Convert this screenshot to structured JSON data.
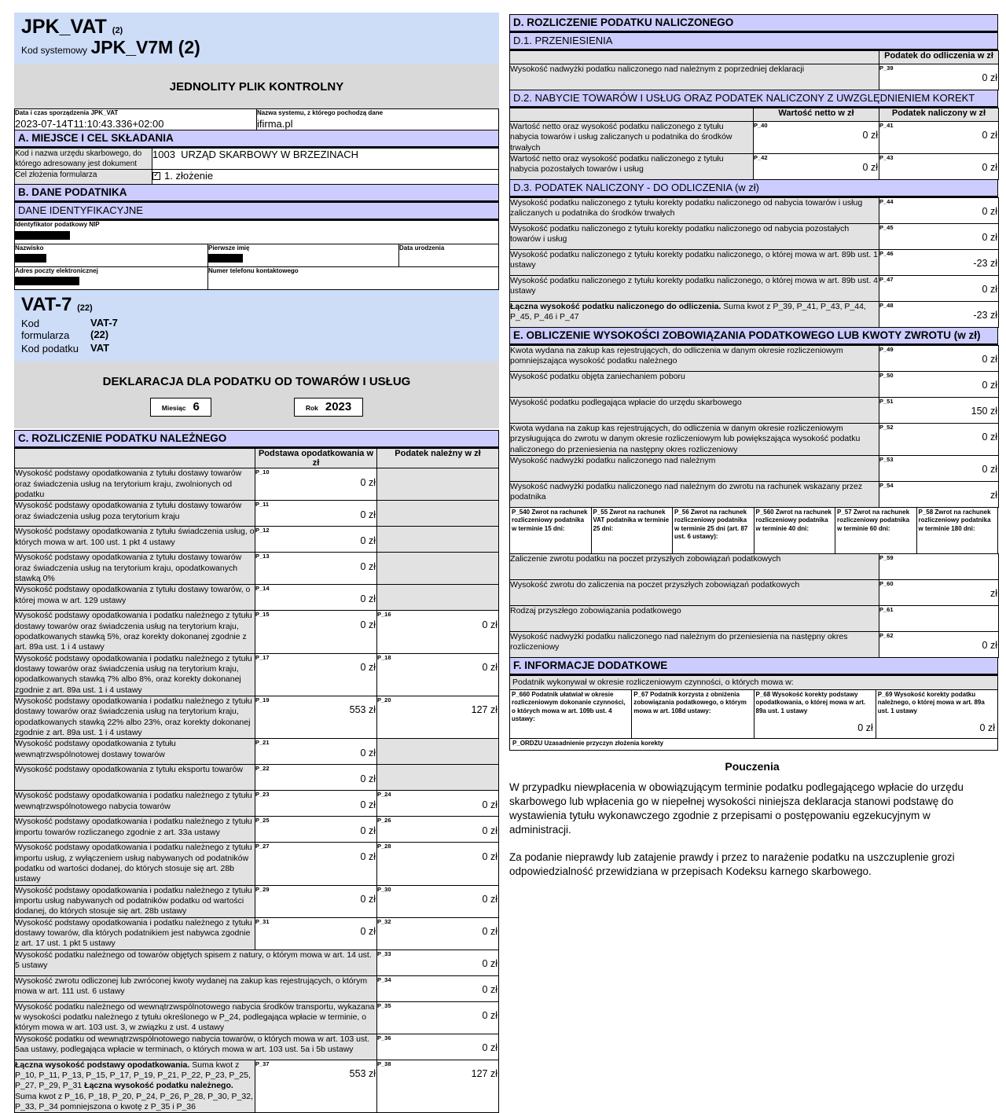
{
  "header": {
    "title": "JPK_VAT",
    "title_version": "(2)",
    "kod_systemowy_label": "Kod systemowy",
    "kod_systemowy_value": "JPK_V7M (2)",
    "banner": "JEDNOLITY PLIK KONTROLNY",
    "date_label": "Data i czas sporządzenia JPK_VAT",
    "date_value": "2023-07-14T11:10:43.336+02:00",
    "system_label": "Nazwa systemu, z którego pochodzą dane",
    "system_value": "ifirma.pl"
  },
  "section_a": {
    "title": "A. MIEJSCE I CEL SKŁADANIA",
    "office_label": "Kod i nazwa urzędu skarbowego, do którego adresowany jest dokument",
    "office_value": "1003  URZĄD SKARBOWY W BRZEZINACH",
    "purpose_label": "Cel złożenia formularza",
    "purpose_value": "1. złożenie"
  },
  "section_b": {
    "title": "B. DANE PODATNIKA",
    "subtitle": "DANE IDENTYFIKACYJNE",
    "nip_label": "Identyfikator podatkowy NIP",
    "surname_label": "Nazwisko",
    "firstname_label": "Pierwsze imię",
    "birthdate_label": "Data urodzenia",
    "email_label": "Adres poczty elektronicznej",
    "phone_label": "Numer telefonu kontaktowego"
  },
  "vat7": {
    "title": "VAT-7",
    "title_version": "(22)",
    "kod_formularza_label": "Kod formularza",
    "kod_formularza_line1": "VAT-7",
    "kod_formularza_line2": "(22)",
    "kod_podatku_label": "Kod podatku",
    "kod_podatku_value": "VAT",
    "banner": "DEKLARACJA DLA PODATKU OD TOWARÓW I USŁUG",
    "month_label": "Miesiąc",
    "month_value": "6",
    "year_label": "Rok",
    "year_value": "2023"
  },
  "section_c": {
    "title": "C. ROZLICZENIE PODATKU NALEŻNEGO",
    "col_headers": [
      "Podstawa opodatkowania w zł",
      "Podatek należny w zł"
    ],
    "rows": [
      {
        "label": "Wysokość podstawy opodatkowania z tytułu dostawy towarów oraz świadczenia usług na terytorium kraju, zwolnionych od podatku",
        "cells": [
          {
            "code": "P_10",
            "value": "0 zł"
          },
          {
            "disabled": true
          }
        ]
      },
      {
        "label": "Wysokość podstawy opodatkowania z tytułu dostawy towarów oraz świadczenia usług poza terytorium kraju",
        "cells": [
          {
            "code": "P_11",
            "value": "0 zł"
          },
          {
            "disabled": true
          }
        ]
      },
      {
        "label": "Wysokość podstawy opodatkowania z tytułu świadczenia usług, o których mowa w art. 100 ust. 1 pkt 4 ustawy",
        "cells": [
          {
            "code": "P_12",
            "value": "0 zł"
          },
          {
            "disabled": true
          }
        ]
      },
      {
        "label": "Wysokość podstawy opodatkowania z tytułu dostawy towarów oraz świadczenia usług na terytorium kraju, opodatkowanych stawką 0%",
        "cells": [
          {
            "code": "P_13",
            "value": "0 zł"
          },
          {
            "disabled": true
          }
        ]
      },
      {
        "label": "Wysokość podstawy opodatkowania z tytułu dostawy towarów, o której mowa w art. 129 ustawy",
        "cells": [
          {
            "code": "P_14",
            "value": "0 zł"
          },
          {
            "disabled": true
          }
        ]
      },
      {
        "label": "Wysokość podstawy opodatkowania i podatku należnego z tytułu dostawy towarów oraz świadczenia usług na terytorium kraju, opodatkowanych stawką 5%, oraz korekty dokonanej zgodnie z art. 89a ust. 1 i 4 ustawy",
        "cells": [
          {
            "code": "P_15",
            "value": "0 zł"
          },
          {
            "code": "P_16",
            "value": "0 zł"
          }
        ]
      },
      {
        "label": "Wysokość podstawy opodatkowania i podatku należnego z tytułu dostawy towarów oraz świadczenia usług na terytorium kraju, opodatkowanych stawką 7% albo 8%, oraz korekty dokonanej zgodnie z art. 89a ust. 1 i 4 ustawy",
        "cells": [
          {
            "code": "P_17",
            "value": "0 zł"
          },
          {
            "code": "P_18",
            "value": "0 zł"
          }
        ]
      },
      {
        "label": "Wysokość podstawy opodatkowania i podatku należnego z tytułu dostawy towarów oraz świadczenia usług na terytorium kraju, opodatkowanych stawką 22% albo 23%, oraz korekty dokonanej zgodnie z art. 89a ust. 1 i 4 ustawy",
        "cells": [
          {
            "code": "P_19",
            "value": "553 zł"
          },
          {
            "code": "P_20",
            "value": "127 zł"
          }
        ]
      },
      {
        "label": "Wysokość podstawy opodatkowania z tytułu wewnątrzwspólnotowej dostawy towarów",
        "cells": [
          {
            "code": "P_21",
            "value": "0 zł"
          },
          {
            "disabled": true
          }
        ]
      },
      {
        "label": "Wysokość podstawy opodatkowania z tytułu eksportu towarów",
        "cells": [
          {
            "code": "P_22",
            "value": "0 zł"
          },
          {
            "disabled": true
          }
        ]
      },
      {
        "label": "Wysokość podstawy opodatkowania i podatku należnego z tytułu wewnątrzwspólnotowego nabycia towarów",
        "cells": [
          {
            "code": "P_23",
            "value": "0 zł"
          },
          {
            "code": "P_24",
            "value": "0 zł"
          }
        ]
      },
      {
        "label": "Wysokość podstawy opodatkowania i podatku należnego z tytułu importu towarów rozliczanego zgodnie z art. 33a ustawy",
        "cells": [
          {
            "code": "P_25",
            "value": "0 zł"
          },
          {
            "code": "P_26",
            "value": "0 zł"
          }
        ]
      },
      {
        "label": "Wysokość podstawy opodatkowania i podatku należnego z tytułu importu usług, z wyłączeniem usług nabywanych od podatników podatku od wartości dodanej, do których stosuje się art. 28b ustawy",
        "cells": [
          {
            "code": "P_27",
            "value": "0 zł"
          },
          {
            "code": "P_28",
            "value": "0 zł"
          }
        ]
      },
      {
        "label": "Wysokość podstawy opodatkowania i podatku należnego z tytułu importu usług nabywanych od podatników podatku od wartości dodanej, do których stosuje się art. 28b ustawy",
        "cells": [
          {
            "code": "P_29",
            "value": "0 zł"
          },
          {
            "code": "P_30",
            "value": "0 zł"
          }
        ]
      },
      {
        "label": "Wysokość podstawy opodatkowania i podatku należnego z tytułu dostawy towarów, dla których podatnikiem jest nabywca zgodnie z art. 17 ust. 1 pkt 5 ustawy",
        "cells": [
          {
            "code": "P_31",
            "value": "0 zł"
          },
          {
            "code": "P_32",
            "value": "0 zł"
          }
        ]
      },
      {
        "label": "Wysokość podatku należnego od towarów objętych spisem z natury, o którym mowa w art. 14 ust. 5 ustawy",
        "labelspan": 2,
        "cells": [
          {
            "code": "P_33",
            "value": "0 zł"
          }
        ]
      },
      {
        "label": "Wysokość zwrotu odliczonej lub zwróconej kwoty wydanej na zakup kas rejestrujących, o którym mowa w art. 111 ust. 6 ustawy",
        "labelspan": 2,
        "cells": [
          {
            "code": "P_34",
            "value": "0 zł"
          }
        ]
      },
      {
        "label": "Wysokość podatku należnego od wewnątrzwspólnotowego nabycia środków transportu, wykazana w wysokości podatku należnego z tytułu określonego w P_24, podlegająca wpłacie w terminie, o którym mowa w art. 103 ust. 3, w związku z ust. 4 ustawy",
        "labelspan": 2,
        "cells": [
          {
            "code": "P_35",
            "value": "0 zł"
          }
        ]
      },
      {
        "label": "Wysokość podatku od wewnątrzwspólnotowego nabycia towarów, o których mowa w art. 103 ust. 5aa ustawy, podlegająca wpłacie w terminach, o których mowa w art. 103 ust. 5a i 5b ustawy",
        "labelspan": 2,
        "cells": [
          {
            "code": "P_36",
            "value": "0 zł"
          }
        ]
      },
      {
        "label_parts": [
          [
            "Łączna wysokość podstawy opodatkowania.",
            1
          ],
          [
            " Suma kwot z P_10, P_11, P_13, P_15, P_17, P_19, P_21, P_22, P_23, P_25, P_27, P_29, P_31 ",
            0
          ],
          [
            "Łączna wysokość podatku należnego.",
            1
          ],
          [
            " Suma kwot z P_16, P_18, P_20, P_24, P_26, P_28, P_30, P_32, P_33, P_34 pomniejszona o kwotę z P_35 i P_36",
            0
          ]
        ],
        "cells": [
          {
            "code": "P_37",
            "value": "553 zł"
          },
          {
            "code": "P_38",
            "value": "127 zł"
          }
        ]
      }
    ]
  },
  "section_d": {
    "title": "D. ROZLICZENIE PODATKU NALICZONEGO",
    "d1": {
      "title": "D.1. PRZENIESIENIA",
      "col_header": "Podatek do odliczenia w zł",
      "rows": [
        {
          "label": "Wysokość nadwyżki podatku naliczonego nad należnym z poprzedniej deklaracji",
          "cells": [
            {
              "code": "P_39",
              "value": "0 zł"
            }
          ]
        }
      ]
    },
    "d2": {
      "title": "D.2. NABYCIE TOWARÓW I USŁUG ORAZ PODATEK NALICZONY Z UWZGLĘDNIENIEM KOREKT",
      "col_headers": [
        "Wartość netto w zł",
        "Podatek naliczony w zł"
      ],
      "rows": [
        {
          "label": "Wartość netto oraz wysokość podatku naliczonego z tytułu nabycia towarów i usług zaliczanych u podatnika do środków trwałych",
          "cells": [
            {
              "code": "P_40",
              "value": "0 zł"
            },
            {
              "code": "P_41",
              "value": "0 zł"
            }
          ]
        },
        {
          "label": "Wartość netto oraz wysokość podatku naliczonego z tytułu nabycia pozostałych towarów i usług",
          "cells": [
            {
              "code": "P_42",
              "value": "0 zł"
            },
            {
              "code": "P_43",
              "value": "0 zł"
            }
          ]
        }
      ]
    },
    "d3": {
      "title": "D.3. PODATEK NALICZONY - DO ODLICZENIA (w zł)",
      "rows": [
        {
          "label": "Wysokość podatku naliczonego z tytułu korekty podatku naliczonego od nabycia towarów i usług zaliczanych u podatnika do środków trwałych",
          "cells": [
            {
              "code": "P_44",
              "value": "0 zł"
            }
          ]
        },
        {
          "label": "Wysokość podatku naliczonego z tytułu korekty podatku naliczonego od nabycia pozostałych towarów i usług",
          "cells": [
            {
              "code": "P_45",
              "value": "0 zł"
            }
          ]
        },
        {
          "label": "Wysokość podatku naliczonego z tytułu korekty podatku naliczonego, o której mowa w art. 89b ust. 1 ustawy",
          "cells": [
            {
              "code": "P_46",
              "value": "-23 zł"
            }
          ]
        },
        {
          "label": "Wysokość podatku naliczonego z tytułu korekty podatku naliczonego, o której mowa w art. 89b ust. 4 ustawy",
          "cells": [
            {
              "code": "P_47",
              "value": "0 zł"
            }
          ]
        },
        {
          "label_parts": [
            [
              "Łączna wysokość podatku naliczonego do odliczenia.",
              1
            ],
            [
              " Suma kwot z P_39, P_41, P_43, P_44, P_45, P_46 i P_47",
              0
            ]
          ],
          "cells": [
            {
              "code": "P_48",
              "value": "-23 zł"
            }
          ]
        }
      ]
    }
  },
  "section_e": {
    "title": "E. OBLICZENIE WYSOKOŚCI ZOBOWIĄZANIA PODATKOWEGO LUB KWOTY ZWROTU  (w zł)",
    "rows_top": [
      {
        "label": "Kwota wydana na zakup kas rejestrujących, do odliczenia w danym okresie rozliczeniowym pomniejszająca wysokość podatku należnego",
        "cells": [
          {
            "code": "P_49",
            "value": "0 zł"
          }
        ]
      },
      {
        "label": "Wysokość podatku objęta zaniechaniem poboru",
        "cells": [
          {
            "code": "P_50",
            "value": "0 zł"
          }
        ]
      },
      {
        "label": "Wysokość podatku podlegająca wpłacie do urzędu skarbowego",
        "cells": [
          {
            "code": "P_51",
            "value": "150 zł"
          }
        ]
      },
      {
        "label": "Kwota wydana na zakup kas rejestrujących, do odliczenia w danym okresie rozliczeniowym przysługująca do zwrotu w danym okresie rozliczeniowym lub powiększająca wysokość podatku naliczonego do przeniesienia na następny okres rozliczeniowy",
        "cells": [
          {
            "code": "P_52",
            "value": "0 zł"
          }
        ]
      },
      {
        "label": "Wysokość nadwyżki podatku naliczonego nad należnym",
        "cells": [
          {
            "code": "P_53",
            "value": "0 zł"
          }
        ]
      },
      {
        "label": "Wysokość nadwyżki podatku naliczonego nad należnym do zwrotu na rachunek wskazany przez podatnika",
        "cells": [
          {
            "code": "P_54",
            "value": "zł"
          }
        ]
      }
    ],
    "refund_options": [
      "P_540 Zwrot na rachunek rozliczeniowy podatnika w terminie 15 dni:",
      "P_55 Zwrot na rachunek VAT podatnika w terminie 25 dni:",
      "P_56 Zwrot na rachunek rozliczeniowy podatnika w terminie 25 dni (art. 87 ust. 6 ustawy):",
      "P_560 Zwrot na rachunek rozliczeniowy podatnika w terminie 40 dni:",
      "P_57 Zwrot na rachunek rozliczeniowy podatnika w terminie 60 dni:",
      "P_58 Zwrot na rachunek rozliczeniowy podatnika w terminie 180 dni:"
    ],
    "rows_bottom": [
      {
        "label": "Zaliczenie zwrotu podatku na poczet przyszłych zobowiązań podatkowych",
        "cells": [
          {
            "code": "P_59",
            "value": ""
          }
        ]
      },
      {
        "label": "Wysokość zwrotu do zaliczenia na poczet przyszłych zobowiązań podatkowych",
        "cells": [
          {
            "code": "P_60",
            "value": "zł"
          }
        ]
      },
      {
        "label": "Rodzaj przyszłego zobowiązania podatkowego",
        "cells": [
          {
            "code": "P_61",
            "value": ""
          }
        ]
      },
      {
        "label": "Wysokość nadwyżki podatku naliczonego nad należnym do przeniesienia na następny okres rozliczeniowy",
        "cells": [
          {
            "code": "P_62",
            "value": "0 zł"
          }
        ]
      }
    ]
  },
  "section_f": {
    "title": "F. INFORMACJE DODATKOWE",
    "intro": "Podatnik wykonywał w okresie rozliczeniowym czynności, o których mowa w:",
    "cells": [
      {
        "label": "P_660 Podatnik ułatwiał w okresie rozliczeniowym dokonanie czynności, o których mowa w art. 109b ust. 4 ustawy:",
        "value": ""
      },
      {
        "label": "P_67 Podatnik korzysta z obniżenia zobowiązania podatkowego, o którym mowa w art. 108d ustawy:",
        "value": ""
      },
      {
        "label": "P_68 Wysokość korekty podstawy opodatkowania, o której mowa w art. 89a ust. 1 ustawy",
        "value": "0 zł"
      },
      {
        "label": "P_69 Wysokość korekty podatku należnego, o której mowa w art. 89a ust. 1 ustawy",
        "value": "0 zł"
      }
    ],
    "ordzu": "P_ORDZU Uzasadnienie przyczyn złożenia korekty"
  },
  "pouczenia": {
    "title": "Pouczenia",
    "paragraphs": [
      "W przypadku niewpłacenia w obowiązującym terminie podatku podlegającego wpłacie do urzędu skarbowego lub wpłacenia go w niepełnej wysokości niniejsza deklaracja stanowi podstawę do wystawienia tytułu wykonawczego zgodnie z przepisami o postępowaniu egzekucyjnym w administracji.",
      "Za podanie nieprawdy lub zatajenie prawdy i przez to narażenie podatku na uszczuplenie grozi odpowiedzialność przewidziana w przepisach Kodeksu karnego skarbowego."
    ]
  },
  "colors": {
    "header_blue": "#cdddf8",
    "section_lavender": "#ccccff",
    "banner_gray": "#d9d9d9",
    "label_gray": "#e2e2e2"
  }
}
